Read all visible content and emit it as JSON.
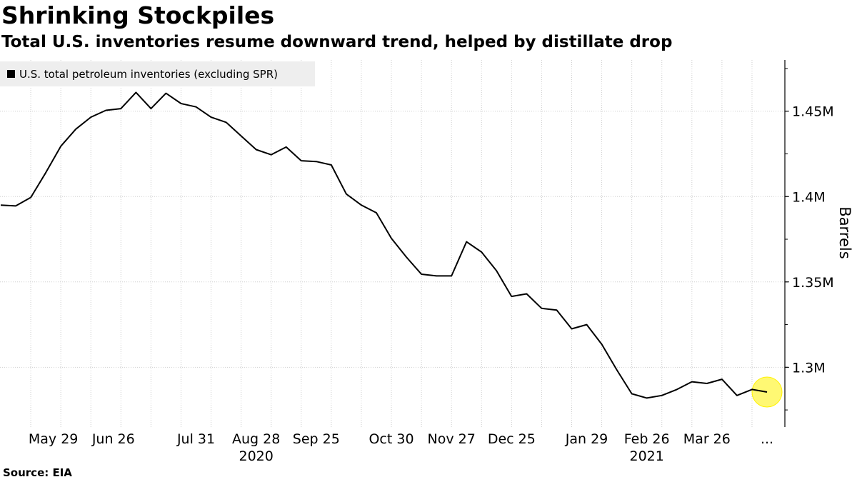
{
  "title": "Shrinking Stockpiles",
  "subtitle": "Total U.S. inventories resume downward trend, helped by distillate drop",
  "source": "Source: EIA",
  "colors": {
    "line": "#000000",
    "grid": "#cfcfcf",
    "legend_bg": "#eeeeee",
    "highlight": "#fff200"
  },
  "chart_data": {
    "type": "line",
    "title": "Shrinking Stockpiles",
    "subtitle": "Total U.S. inventories resume downward trend, helped by distillate drop",
    "ylabel": "Barrels",
    "ylim": [
      1.265,
      1.48
    ],
    "y_ticks": [
      {
        "value": 1.3,
        "label": "1.3M"
      },
      {
        "value": 1.35,
        "label": "1.35M"
      },
      {
        "value": 1.4,
        "label": "1.4M"
      },
      {
        "value": 1.45,
        "label": "1.45M"
      }
    ],
    "x_ticks": [
      {
        "index": 2,
        "label": "May 29"
      },
      {
        "index": 4,
        "label": "Jun 26"
      },
      {
        "index": 6,
        "label": ""
      },
      {
        "index": 8,
        "label": ""
      },
      {
        "index": 10,
        "label": ""
      },
      {
        "index": 12,
        "label": ""
      },
      {
        "index": 14,
        "label": ""
      },
      {
        "index": 16,
        "label": ""
      },
      {
        "index": 18,
        "label": ""
      },
      {
        "index": 20,
        "label": ""
      },
      {
        "index": 22,
        "label": ""
      },
      {
        "index": 24,
        "label": ""
      },
      {
        "index": 26,
        "label": ""
      },
      {
        "index": 28,
        "label": ""
      },
      {
        "index": 30,
        "label": ""
      },
      {
        "index": 32,
        "label": ""
      },
      {
        "index": 34,
        "label": ""
      },
      {
        "index": 36,
        "label": ""
      },
      {
        "index": 38,
        "label": ""
      },
      {
        "index": 40,
        "label": ""
      },
      {
        "index": 42,
        "label": ""
      },
      {
        "index": 44,
        "label": ""
      },
      {
        "index": 46,
        "label": ""
      },
      {
        "index": 48,
        "label": ""
      },
      {
        "index": 50,
        "label": ""
      }
    ],
    "x_tick_labels": [
      {
        "index": 3.5,
        "label": "May 29"
      },
      {
        "index": 7.5,
        "label": "Jun 26"
      },
      {
        "index": 13,
        "label": "Jul 31"
      },
      {
        "index": 17,
        "label": "Aug 28"
      },
      {
        "index": 21,
        "label": "Sep 25"
      },
      {
        "index": 26,
        "label": "Oct 30"
      },
      {
        "index": 30,
        "label": "Nov 27"
      },
      {
        "index": 34,
        "label": "Dec 25"
      },
      {
        "index": 39,
        "label": "Jan 29"
      },
      {
        "index": 43,
        "label": "Feb 26"
      },
      {
        "index": 47,
        "label": "Mar 26"
      },
      {
        "index": 51,
        "label": "..."
      }
    ],
    "year_labels": [
      {
        "index": 17,
        "label": "2020"
      },
      {
        "index": 43,
        "label": "2021"
      }
    ],
    "series": [
      {
        "name": "U.S. total petroleum inventories (excluding SPR)",
        "values": [
          1.395,
          1.3945,
          1.3995,
          1.414,
          1.4295,
          1.4395,
          1.4465,
          1.4505,
          1.4515,
          1.461,
          1.4515,
          1.4605,
          1.4545,
          1.4525,
          1.4465,
          1.4435,
          1.4355,
          1.4275,
          1.4245,
          1.429,
          1.421,
          1.4205,
          1.4185,
          1.4015,
          1.395,
          1.3905,
          1.3755,
          1.3645,
          1.3545,
          1.3535,
          1.3535,
          1.3735,
          1.3675,
          1.3565,
          1.3415,
          1.343,
          1.3345,
          1.3335,
          1.3225,
          1.325,
          1.3135,
          1.2985,
          1.2845,
          1.282,
          1.2835,
          1.287,
          1.2915,
          1.2905,
          1.293,
          1.2835,
          1.287,
          1.2855
        ]
      }
    ],
    "highlight_last_point": true,
    "legend_position": "top-left",
    "grid": true
  }
}
